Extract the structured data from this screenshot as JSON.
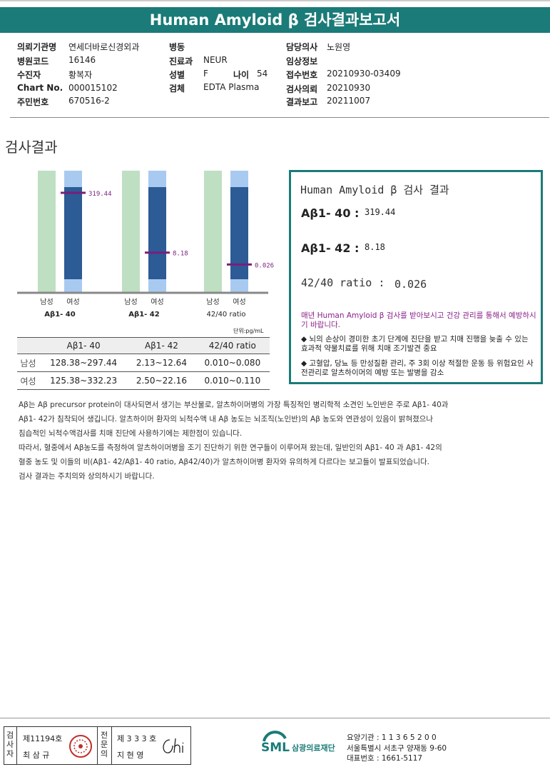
{
  "header": {
    "title": "Human Amyloid β 검사결과보고서"
  },
  "info": {
    "col1": [
      {
        "label": "의뢰기관명",
        "value": "연세더바로신경외과"
      },
      {
        "label": "병원코드",
        "value": "16146"
      },
      {
        "label": "수진자",
        "value": "황복자"
      },
      {
        "label": "Chart No.",
        "value": "000015102"
      },
      {
        "label": "주민번호",
        "value": "670516-2"
      }
    ],
    "col2": [
      {
        "label": "병동",
        "value": ""
      },
      {
        "label": "진료과",
        "value": "NEUR"
      },
      {
        "label": "성별",
        "value": "F"
      },
      {
        "label": "검체",
        "value": "EDTA Plasma"
      }
    ],
    "age_label": "나이",
    "age_value": "54",
    "col3": [
      {
        "label": "담당의사",
        "value": "노원영"
      },
      {
        "label": "임상정보",
        "value": ""
      },
      {
        "label": "접수번호",
        "value": "20210930-03409"
      },
      {
        "label": "검사의뢰",
        "value": "20210930"
      },
      {
        "label": "결과보고",
        "value": "20211007"
      }
    ]
  },
  "section_title": "검사결과",
  "chart_data": {
    "type": "bar",
    "groups": [
      "Aβ1- 40",
      "Aβ1- 42",
      "42/40 ratio"
    ],
    "bar_labels": [
      "남성",
      "여성"
    ],
    "reference": {
      "male": [
        [
          128.38,
          297.44
        ],
        [
          2.13,
          12.64
        ],
        [
          0.01,
          0.08
        ]
      ],
      "female": [
        [
          125.38,
          332.23
        ],
        [
          2.5,
          22.16
        ],
        [
          0.01,
          0.11
        ]
      ]
    },
    "markers": [
      {
        "value": 319.44,
        "label": "319.44"
      },
      {
        "value": 8.18,
        "label": "8.18"
      },
      {
        "value": 0.026,
        "label": "0.026"
      }
    ],
    "colors": {
      "male": "#bfdfc3",
      "female_light": "#a9caf0",
      "female_dark": "#2c5b95",
      "marker": "#7a1e7c"
    }
  },
  "result_box": {
    "title": "Human Amyloid β 검사 결과",
    "rows": [
      {
        "label": "Aβ1- 40 :",
        "value": "319.44"
      },
      {
        "label": "Aβ1- 42 :",
        "value": "8.18"
      },
      {
        "label": "42/40 ratio :",
        "value": "0.026"
      }
    ],
    "note_main": "매년 Human Amyloid β 검사를 받아보시고 건강 관리를 통해서 예방하시기 바랍니다.",
    "bullets": [
      "뇌의 손상이 경미한 초기 단계에 진단을 받고 치매 진행을 늦출 수 있는 효과적 약물치료를 위해 치매 조기발견 중요",
      "고혈압, 당뇨 등 만성질환 관리, 주 3회 이상 적절한 운동 등 위험요인 사전관리로 알츠하이머의 예방 또는 발병을 감소"
    ]
  },
  "unit": "단위:pg/mL",
  "table": {
    "headers": [
      "",
      "Aβ1- 40",
      "Aβ1- 42",
      "42/40 ratio"
    ],
    "rows": [
      [
        "남성",
        "128.38~297.44",
        "2.13~12.64",
        "0.010~0.080"
      ],
      [
        "여성",
        "125.38~332.23",
        "2.50~22.16",
        "0.010~0.110"
      ]
    ]
  },
  "paragraphs": [
    "Aβ는 Aβ precursor protein이 대사되면서 생기는 부산물로, 알츠하이머병의 가장 특징적인 병리학적 소견인 노인반은 주로 Aβ1- 40과",
    "Aβ1- 42가 침착되어 생깁니다. 알츠하이머 환자의 뇌척수액 내 Aβ 농도는 뇌조직(노인반)의 Aβ 농도와 연관성이 있음이 밝혀졌으나",
    "침습적인 뇌척수액검사를 치매 진단에 사용하기에는 제한점이 있습니다.",
    "따라서, 혈중에서 Aβ농도를 측정하여 알츠하이머병을 조기 진단하기 위한 연구들이 이루어져 왔는데, 일반인의 Aβ1- 40 과 Aβ1- 42의",
    "혈중 농도 및 이들의 비(Aβ1- 42/Aβ1- 40 ratio, Aβ42/40)가 알츠하이머병 환자와 유의하게 다르다는 보고들이 발표되었습니다.",
    "검사 결과는 주치의와 상의하시기 바랍니다."
  ],
  "footer": {
    "inspector_label": "검사자",
    "inspector_no": "제11194호",
    "inspector_name": "최 삼 규",
    "specialist_label": "전문의",
    "specialist_no": "제 3 3 3 호",
    "specialist_name": "지 현 영",
    "org_logo": "SML",
    "org_name": "삼광의료재단",
    "code_line": "요양기관 : 1 1 3 6 5 2 0 0",
    "address": "서울특별시 서초구 양재동 9-60",
    "phone": "대표번호 : 1661-5117"
  }
}
